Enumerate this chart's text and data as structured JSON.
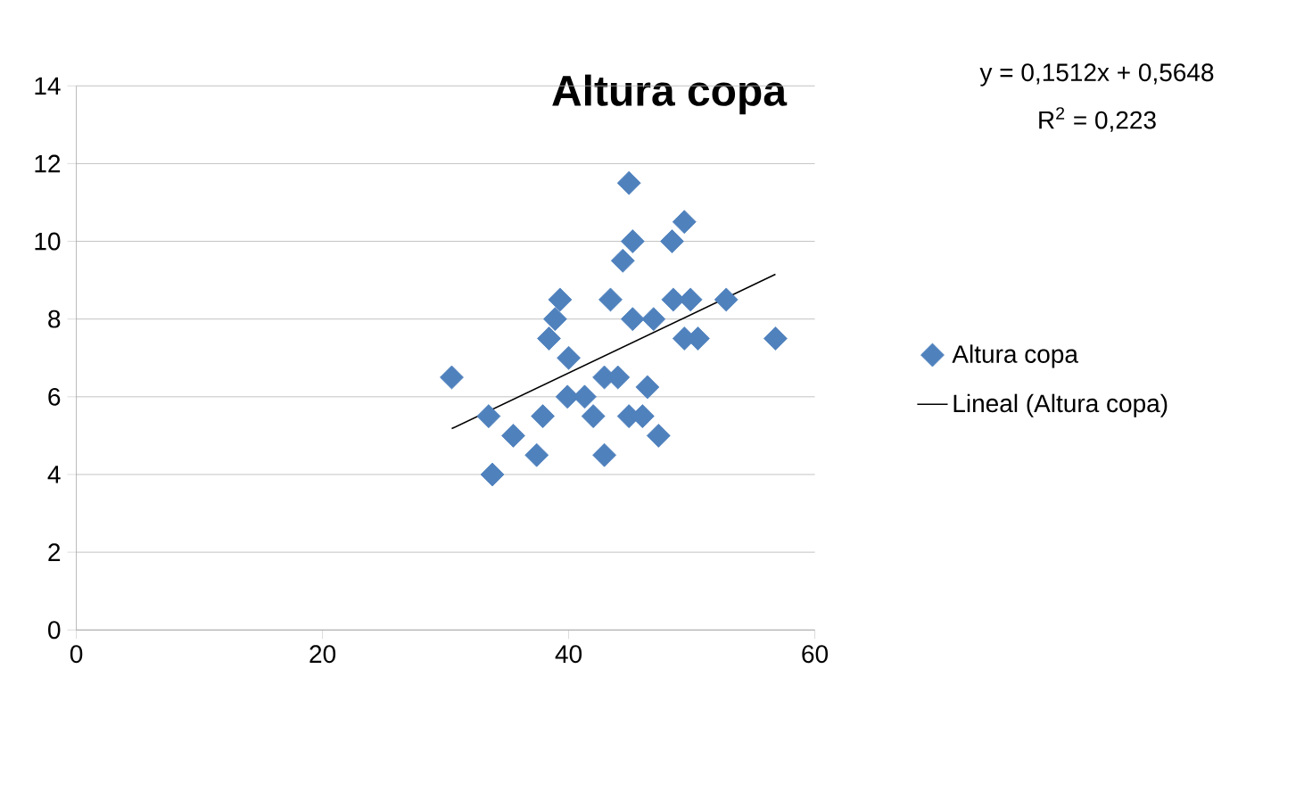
{
  "chart_data": {
    "type": "scatter",
    "title": "Altura copa",
    "annotations": [
      "y = 0,1512x + 0,5648",
      "R$^{2}$ = 0,223"
    ],
    "series": [
      {
        "name": "Altura copa",
        "color": "#4f81bd",
        "marker": "diamond",
        "x": [
          30.5,
          33.5,
          33.8,
          35.5,
          37.4,
          37.9,
          38.4,
          38.9,
          39.3,
          40.0,
          39.9,
          41.3,
          42.0,
          42.9,
          42.9,
          43.4,
          44.0,
          44.4,
          44.9,
          44.9,
          45.2,
          45.2,
          46.0,
          46.4,
          46.9,
          47.3,
          48.4,
          48.5,
          49.4,
          49.4,
          49.9,
          50.5,
          52.8,
          56.8
        ],
        "values": [
          6.5,
          5.5,
          4.0,
          5.0,
          4.5,
          5.5,
          7.5,
          8.0,
          8.5,
          7.0,
          6.0,
          6.0,
          5.5,
          4.5,
          6.5,
          8.5,
          6.5,
          9.5,
          11.5,
          5.5,
          10.0,
          8.0,
          5.5,
          6.25,
          8.0,
          5.0,
          10.0,
          8.5,
          10.5,
          7.5,
          8.5,
          7.5,
          8.5,
          7.5
        ]
      },
      {
        "name": "Lineal (Altura copa)",
        "type": "line",
        "color": "#000000",
        "marker": "none",
        "x": [
          30.5,
          56.8
        ],
        "values": [
          5.18,
          9.15
        ]
      }
    ],
    "xlim": [
      0,
      60
    ],
    "xticks": [
      0,
      20,
      40,
      60
    ],
    "ylim": [
      0,
      14
    ],
    "yticks": [
      0,
      2,
      4,
      6,
      8,
      10,
      12,
      14
    ],
    "grid": "y",
    "legend": "right"
  }
}
